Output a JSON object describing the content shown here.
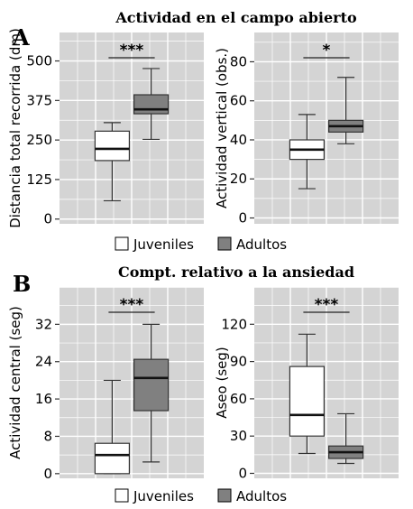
{
  "panels": [
    {
      "letter": "A",
      "title": "Actividad en el campo abierto"
    },
    {
      "letter": "B",
      "title": "Compt. relativo a la ansiedad"
    }
  ],
  "legend": [
    {
      "label": "Juveniles",
      "color": "#ffffff"
    },
    {
      "label": "Adultos",
      "color": "#808080"
    }
  ],
  "chart_data": [
    {
      "type": "box",
      "panel": "A",
      "ylabel": "Distancia total recorrida (dm)",
      "ylim": [
        -15,
        590
      ],
      "yticks": [
        0,
        125,
        250,
        375,
        500
      ],
      "significance": "***",
      "series": [
        {
          "name": "Juveniles",
          "min": 58,
          "q1": 185,
          "median": 222,
          "q3": 278,
          "max": 305,
          "color": "#ffffff"
        },
        {
          "name": "Adultos",
          "min": 252,
          "q1": 333,
          "median": 347,
          "q3": 393,
          "max": 476,
          "color": "#808080"
        }
      ]
    },
    {
      "type": "box",
      "panel": "A",
      "ylabel": "Actividad vertical (obs.)",
      "ylim": [
        -3,
        95
      ],
      "yticks": [
        0,
        20,
        40,
        60,
        80
      ],
      "significance": "*",
      "series": [
        {
          "name": "Juveniles",
          "min": 15,
          "q1": 30,
          "median": 35,
          "q3": 40,
          "max": 53,
          "color": "#ffffff"
        },
        {
          "name": "Adultos",
          "min": 38,
          "q1": 44,
          "median": 47,
          "q3": 50,
          "max": 72,
          "color": "#808080"
        }
      ]
    },
    {
      "type": "box",
      "panel": "B",
      "ylabel": "Actividad central (seg)",
      "ylim": [
        -1,
        40
      ],
      "yticks": [
        0,
        8,
        16,
        24,
        32
      ],
      "significance": "***",
      "series": [
        {
          "name": "Juveniles",
          "min": 0,
          "q1": 0,
          "median": 4,
          "q3": 6.5,
          "max": 20,
          "color": "#ffffff"
        },
        {
          "name": "Adultos",
          "min": 2.5,
          "q1": 13.5,
          "median": 20.5,
          "q3": 24.5,
          "max": 32,
          "color": "#808080"
        }
      ]
    },
    {
      "type": "box",
      "panel": "B",
      "ylabel": "Aseo (seg)",
      "ylim": [
        -4,
        150
      ],
      "yticks": [
        0,
        30,
        60,
        90,
        120
      ],
      "significance": "***",
      "series": [
        {
          "name": "Juveniles",
          "min": 16,
          "q1": 30,
          "median": 47,
          "q3": 86,
          "max": 112,
          "color": "#ffffff"
        },
        {
          "name": "Adultos",
          "min": 8,
          "q1": 12,
          "median": 17,
          "q3": 22,
          "max": 48,
          "color": "#808080"
        }
      ]
    }
  ]
}
